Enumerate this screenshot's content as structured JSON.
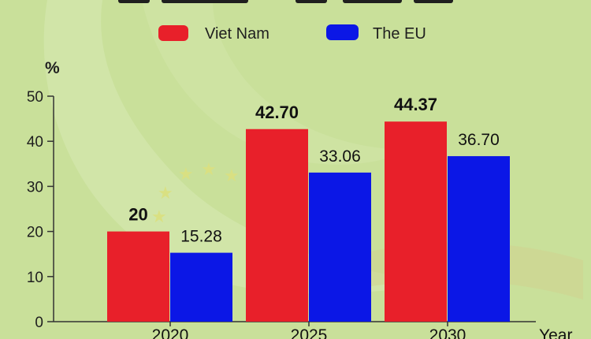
{
  "chart_data": {
    "type": "bar",
    "categories": [
      "2020",
      "2025",
      "2030"
    ],
    "series": [
      {
        "name": "Viet Nam",
        "color": "#e8202a",
        "values": [
          20,
          42.7,
          44.37
        ],
        "labels": [
          "20",
          "42.70",
          "44.37"
        ],
        "label_style": "bold"
      },
      {
        "name": "The EU",
        "color": "#0b17e6",
        "values": [
          15.28,
          33.06,
          36.7
        ],
        "labels": [
          "15.28",
          "33.06",
          "36.70"
        ],
        "label_style": "regular"
      }
    ],
    "ylabel": "%",
    "xlabel": "Year",
    "ylim": [
      0,
      50
    ],
    "yticks": [
      "0",
      "10",
      "20",
      "30",
      "40",
      "50"
    ],
    "legend_position": "top",
    "grid": false
  }
}
